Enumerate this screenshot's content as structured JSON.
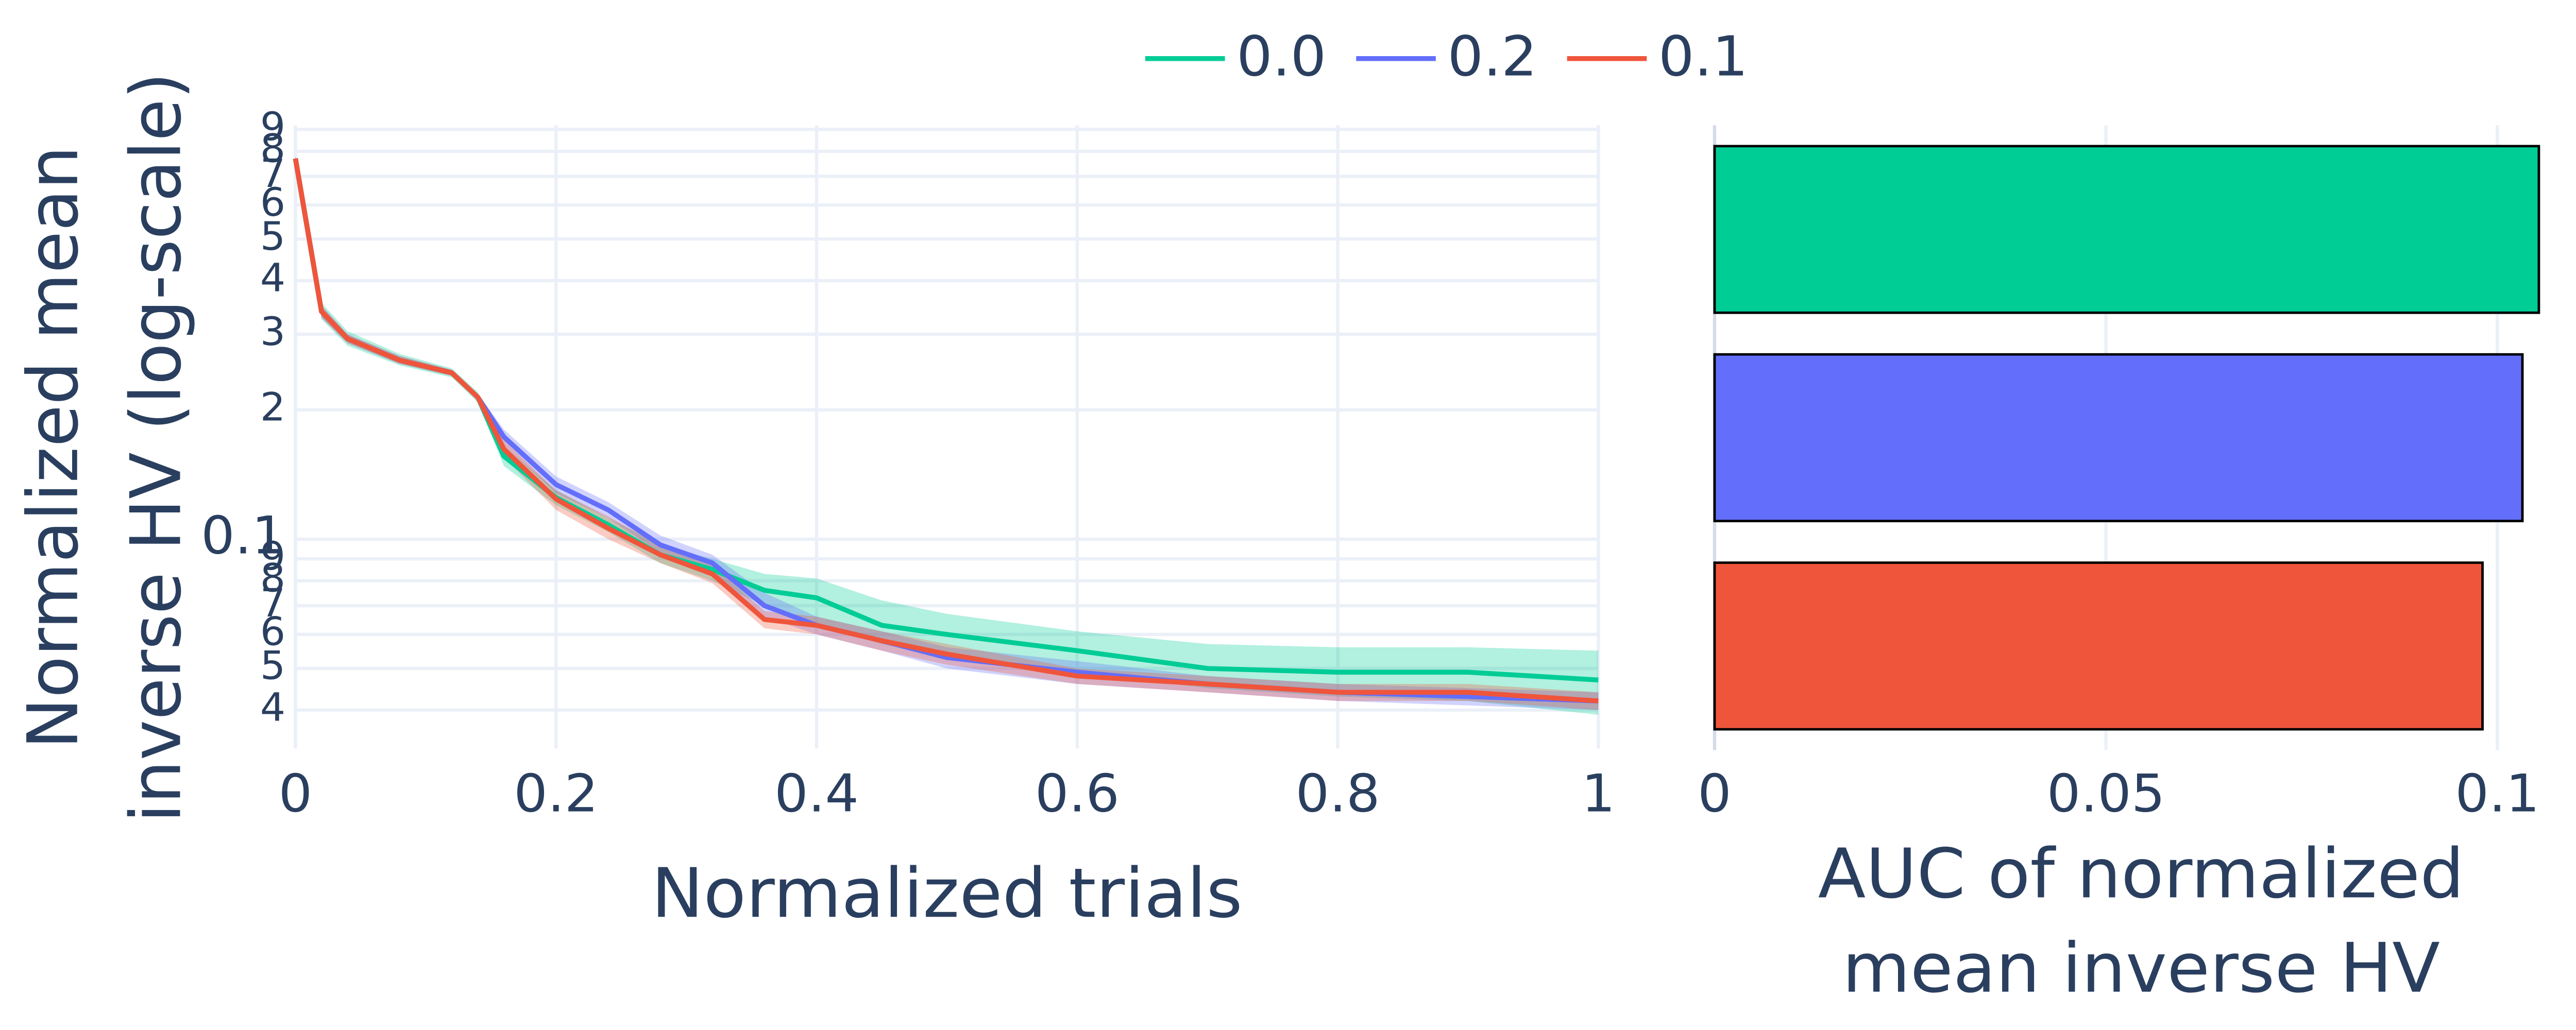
{
  "chart_data": [
    {
      "type": "line",
      "xlabel": "Normalized trials",
      "ylabel": [
        "Normalized mean",
        "inverse HV (log-scale)"
      ],
      "log_y": true,
      "grid": true,
      "legend": "top-center",
      "x": [
        0,
        0.02,
        0.04,
        0.08,
        0.12,
        0.14,
        0.16,
        0.2,
        0.24,
        0.28,
        0.32,
        0.36,
        0.4,
        0.45,
        0.5,
        0.6,
        0.7,
        0.8,
        0.9,
        1
      ],
      "xlim": [
        0,
        1
      ],
      "xticks": [
        0,
        0.2,
        0.4,
        0.6,
        0.8,
        1
      ],
      "ylim": [
        0.034,
        0.92
      ],
      "yticks": [
        {
          "value": 0.04,
          "label": "4"
        },
        {
          "value": 0.05,
          "label": "5"
        },
        {
          "value": 0.06,
          "label": "6"
        },
        {
          "value": 0.07,
          "label": "7"
        },
        {
          "value": 0.08,
          "label": "8"
        },
        {
          "value": 0.09,
          "label": "9"
        },
        0.1,
        {
          "value": 0.2,
          "label": "2"
        },
        {
          "value": 0.3,
          "label": "3"
        },
        {
          "value": 0.4,
          "label": "4"
        },
        {
          "value": 0.5,
          "label": "5"
        },
        {
          "value": 0.6,
          "label": "6"
        },
        {
          "value": 0.7,
          "label": "7"
        },
        {
          "value": 0.8,
          "label": "8"
        },
        {
          "value": 0.9,
          "label": "9"
        }
      ],
      "series": [
        {
          "name": "0.0",
          "color": "#00cc96",
          "values": [
            0.77,
            0.339,
            0.293,
            0.261,
            0.244,
            0.214,
            0.156,
            0.125,
            0.108,
            0.092,
            0.085,
            0.076,
            0.073,
            0.063,
            0.06,
            0.055,
            0.05,
            0.049,
            0.049,
            0.047
          ],
          "upper": [
            0.78,
            0.355,
            0.305,
            0.27,
            0.25,
            0.22,
            0.165,
            0.13,
            0.112,
            0.097,
            0.09,
            0.083,
            0.081,
            0.072,
            0.067,
            0.061,
            0.057,
            0.056,
            0.056,
            0.055
          ],
          "lower": [
            0.76,
            0.325,
            0.282,
            0.254,
            0.238,
            0.208,
            0.148,
            0.12,
            0.104,
            0.088,
            0.08,
            0.07,
            0.063,
            0.057,
            0.053,
            0.049,
            0.045,
            0.043,
            0.042,
            0.039
          ]
        },
        {
          "name": "0.2",
          "color": "#636efa",
          "values": [
            0.77,
            0.339,
            0.293,
            0.261,
            0.244,
            0.214,
            0.173,
            0.134,
            0.117,
            0.097,
            0.088,
            0.07,
            0.063,
            0.058,
            0.053,
            0.049,
            0.046,
            0.044,
            0.043,
            0.042
          ],
          "upper": [
            0.78,
            0.35,
            0.3,
            0.267,
            0.248,
            0.218,
            0.18,
            0.14,
            0.122,
            0.102,
            0.092,
            0.075,
            0.066,
            0.061,
            0.056,
            0.052,
            0.048,
            0.046,
            0.045,
            0.044
          ],
          "lower": [
            0.76,
            0.328,
            0.286,
            0.256,
            0.24,
            0.21,
            0.165,
            0.128,
            0.112,
            0.093,
            0.084,
            0.066,
            0.06,
            0.055,
            0.05,
            0.046,
            0.044,
            0.042,
            0.041,
            0.04
          ]
        },
        {
          "name": "0.1",
          "color": "#ef553b",
          "values": [
            0.77,
            0.339,
            0.293,
            0.261,
            0.244,
            0.214,
            0.162,
            0.124,
            0.106,
            0.092,
            0.083,
            0.065,
            0.063,
            0.058,
            0.054,
            0.048,
            0.046,
            0.044,
            0.044,
            0.042
          ],
          "upper": [
            0.78,
            0.35,
            0.3,
            0.267,
            0.248,
            0.218,
            0.17,
            0.13,
            0.113,
            0.097,
            0.087,
            0.068,
            0.066,
            0.061,
            0.057,
            0.05,
            0.048,
            0.046,
            0.046,
            0.044
          ],
          "lower": [
            0.76,
            0.328,
            0.286,
            0.256,
            0.24,
            0.21,
            0.155,
            0.117,
            0.1,
            0.088,
            0.079,
            0.062,
            0.06,
            0.055,
            0.051,
            0.046,
            0.044,
            0.042,
            0.042,
            0.04
          ]
        }
      ]
    },
    {
      "type": "bar",
      "orientation": "h",
      "grid": true,
      "xlabel": [
        "AUC of normalized",
        "mean inverse HV"
      ],
      "categories": [
        null,
        null,
        null
      ],
      "values": [
        0.1053,
        0.1032,
        0.0981
      ],
      "colors": [
        "#00cc96",
        "#636efa",
        "#ef553b"
      ],
      "xlim": [
        0,
        0.1075
      ],
      "xticks": [
        0,
        0.05,
        0.1
      ]
    }
  ]
}
